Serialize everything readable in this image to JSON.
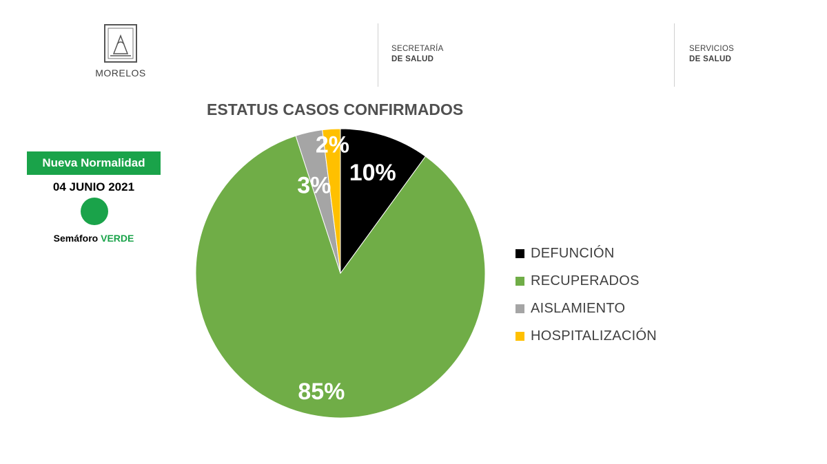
{
  "header": {
    "logo_name": "MORELOS",
    "org1": {
      "line1": "SECRETARÍA",
      "line2": "DE SALUD"
    },
    "org2": {
      "line1": "SERVICIOS",
      "line2": "DE SALUD"
    }
  },
  "status": {
    "badge": "Nueva Normalidad",
    "date": "04 JUNIO 2021",
    "semaforo_label": "Semáforo",
    "semaforo_value": "VERDE",
    "color": "#1aa34a"
  },
  "chart_data": {
    "type": "pie",
    "title": "ESTATUS CASOS CONFIRMADOS",
    "slices": [
      {
        "label": "DEFUNCIÓN",
        "value": 10,
        "display": "10%",
        "color": "#000000"
      },
      {
        "label": "RECUPERADOS",
        "value": 85,
        "display": "85%",
        "color": "#70ad47"
      },
      {
        "label": "AISLAMIENTO",
        "value": 3,
        "display": "3%",
        "color": "#a5a5a5"
      },
      {
        "label": "HOSPITALIZACIÓN",
        "value": 2,
        "display": "2%",
        "color": "#ffc000"
      }
    ],
    "legend_position": "right"
  }
}
